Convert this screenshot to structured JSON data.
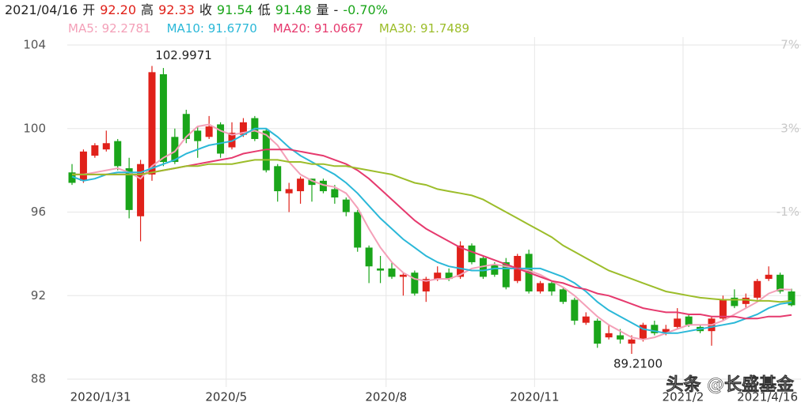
{
  "chart_data": {
    "type": "candlestick",
    "header": [
      {
        "text": "2021/04/16",
        "color": "#222222"
      },
      {
        "text": "开",
        "color": "#222222"
      },
      {
        "text": "92.20",
        "color": "#e0211a"
      },
      {
        "text": "高",
        "color": "#222222"
      },
      {
        "text": "92.33",
        "color": "#e0211a"
      },
      {
        "text": "收",
        "color": "#222222"
      },
      {
        "text": "91.54",
        "color": "#1aa51a"
      },
      {
        "text": "低",
        "color": "#222222"
      },
      {
        "text": "91.48",
        "color": "#1aa51a"
      },
      {
        "text": "量",
        "color": "#222222"
      },
      {
        "text": "-",
        "color": "#222222"
      },
      {
        "text": "-0.70%",
        "color": "#1aa51a"
      }
    ],
    "up_color": "#e0211a",
    "down_color": "#1aa51a",
    "open": [
      97.9,
      97.5,
      98.7,
      99.0,
      99.4,
      98.1,
      95.8,
      97.8,
      102.6,
      99.6,
      100.7,
      99.9,
      99.6,
      100.2,
      99.1,
      99.7,
      100.5,
      99.9,
      98.2,
      96.9,
      97.0,
      97.6,
      97.5,
      97.1,
      96.6,
      96.0,
      94.3,
      93.3,
      93.3,
      92.9,
      93.1,
      92.2,
      92.8,
      93.1,
      92.9,
      94.4,
      93.8,
      93.5,
      93.6,
      92.7,
      94.0,
      92.2,
      92.6,
      92.3,
      91.8,
      90.7,
      90.8,
      90.0,
      90.1,
      89.7,
      89.9,
      90.6,
      90.2,
      90.5,
      91.0,
      90.5,
      90.3,
      90.9,
      91.9,
      91.6,
      91.9,
      92.8,
      93.0,
      92.2
    ],
    "high": [
      98.3,
      99.0,
      99.3,
      99.9,
      99.5,
      98.6,
      98.5,
      102.9971,
      102.9,
      100.0,
      100.9,
      100.1,
      100.6,
      100.3,
      100.3,
      100.5,
      100.6,
      100.0,
      98.3,
      97.4,
      97.7,
      97.6,
      97.6,
      97.3,
      96.7,
      96.1,
      94.4,
      93.9,
      93.6,
      93.1,
      93.2,
      92.9,
      93.4,
      93.3,
      94.6,
      94.5,
      93.9,
      93.6,
      93.8,
      94.0,
      94.2,
      92.7,
      92.7,
      92.4,
      91.9,
      91.2,
      90.9,
      90.6,
      90.4,
      90.1,
      90.7,
      90.8,
      90.6,
      91.4,
      91.1,
      90.6,
      91.0,
      92.0,
      92.3,
      92.1,
      92.8,
      93.4,
      93.1,
      92.33
    ],
    "low": [
      97.3,
      97.4,
      98.6,
      98.9,
      98.0,
      95.7,
      94.6,
      97.5,
      98.2,
      98.3,
      99.3,
      98.6,
      99.5,
      98.6,
      99.0,
      99.6,
      99.4,
      97.9,
      96.5,
      96.0,
      96.4,
      96.5,
      96.9,
      96.4,
      95.8,
      94.1,
      92.6,
      92.6,
      92.8,
      92.0,
      92.0,
      91.7,
      92.7,
      92.7,
      92.8,
      93.5,
      92.8,
      92.9,
      92.3,
      92.6,
      92.1,
      92.1,
      92.0,
      91.6,
      90.6,
      90.6,
      89.5,
      89.9,
      89.7,
      89.21,
      89.8,
      90.1,
      90.1,
      90.4,
      90.5,
      90.2,
      89.6,
      90.8,
      91.4,
      91.4,
      91.8,
      92.7,
      92.1,
      91.48
    ],
    "close": [
      97.4,
      98.9,
      99.2,
      99.3,
      98.2,
      96.1,
      98.3,
      102.7,
      98.4,
      98.4,
      99.5,
      99.4,
      100.1,
      98.8,
      99.8,
      100.3,
      99.5,
      98.0,
      97.0,
      97.1,
      97.6,
      97.3,
      97.0,
      96.7,
      96.0,
      94.3,
      93.4,
      93.2,
      92.9,
      93.0,
      92.1,
      92.8,
      93.1,
      92.8,
      94.4,
      93.6,
      92.9,
      93.0,
      92.4,
      93.9,
      92.2,
      92.6,
      92.2,
      91.7,
      90.8,
      91.0,
      89.7,
      90.2,
      89.9,
      89.9,
      90.6,
      90.2,
      90.4,
      90.9,
      90.6,
      90.3,
      90.9,
      91.8,
      91.5,
      91.9,
      92.7,
      93.0,
      92.2,
      91.54
    ],
    "series": [
      {
        "name": "MA5: 92.2781",
        "color": "#f4a0b8",
        "values": [
          97.8,
          97.8,
          97.9,
          98.0,
          98.1,
          97.9,
          97.6,
          98.2,
          98.6,
          98.9,
          99.6,
          100.1,
          100.2,
          99.9,
          99.7,
          99.8,
          99.9,
          99.7,
          99.2,
          98.4,
          97.8,
          97.5,
          97.3,
          97.2,
          96.9,
          96.2,
          95.2,
          94.3,
          93.6,
          93.1,
          92.8,
          92.7,
          92.8,
          92.8,
          93.0,
          93.3,
          93.4,
          93.5,
          93.4,
          93.3,
          93.2,
          93.0,
          92.7,
          92.4,
          92.0,
          91.5,
          91.0,
          90.6,
          90.3,
          90.0,
          89.9,
          90.0,
          90.2,
          90.4,
          90.6,
          90.6,
          90.6,
          90.8,
          91.1,
          91.4,
          91.7,
          92.1,
          92.3,
          92.28
        ]
      },
      {
        "name": "MA10: 91.6770",
        "color": "#2bb8d8",
        "values": [
          97.7,
          97.5,
          97.6,
          97.8,
          97.9,
          97.9,
          97.9,
          98.1,
          98.3,
          98.5,
          98.8,
          99.0,
          99.2,
          99.3,
          99.4,
          99.7,
          100.0,
          100.0,
          99.6,
          99.1,
          98.7,
          98.4,
          98.1,
          97.8,
          97.4,
          96.9,
          96.3,
          95.7,
          95.2,
          94.7,
          94.3,
          93.9,
          93.6,
          93.4,
          93.3,
          93.2,
          93.2,
          93.3,
          93.3,
          93.3,
          93.3,
          93.3,
          93.1,
          92.9,
          92.6,
          92.2,
          91.7,
          91.3,
          91.0,
          90.7,
          90.4,
          90.3,
          90.2,
          90.2,
          90.3,
          90.4,
          90.5,
          90.6,
          90.7,
          90.9,
          91.1,
          91.4,
          91.6,
          91.68
        ]
      },
      {
        "name": "MA20: 91.0667",
        "color": "#e63a6e",
        "values": [
          97.8,
          97.8,
          97.8,
          97.8,
          97.8,
          97.8,
          97.8,
          97.9,
          98.0,
          98.1,
          98.2,
          98.3,
          98.4,
          98.5,
          98.6,
          98.8,
          98.9,
          99.0,
          99.0,
          99.0,
          98.9,
          98.8,
          98.7,
          98.5,
          98.3,
          98.0,
          97.6,
          97.1,
          96.6,
          96.1,
          95.6,
          95.2,
          94.9,
          94.6,
          94.3,
          94.1,
          93.9,
          93.7,
          93.5,
          93.3,
          93.1,
          92.9,
          92.7,
          92.6,
          92.4,
          92.3,
          92.1,
          92.0,
          91.8,
          91.6,
          91.4,
          91.3,
          91.2,
          91.2,
          91.1,
          91.1,
          91.0,
          91.0,
          91.0,
          90.9,
          90.9,
          91.0,
          91.0,
          91.07
        ]
      },
      {
        "name": "MA30: 91.7489",
        "color": "#9cbd2a",
        "values": [
          97.8,
          97.8,
          97.8,
          97.8,
          97.8,
          97.8,
          97.8,
          97.9,
          98.0,
          98.1,
          98.2,
          98.2,
          98.3,
          98.3,
          98.3,
          98.4,
          98.5,
          98.5,
          98.5,
          98.4,
          98.4,
          98.3,
          98.3,
          98.2,
          98.2,
          98.1,
          98.0,
          97.9,
          97.8,
          97.6,
          97.4,
          97.3,
          97.1,
          97.0,
          96.9,
          96.8,
          96.6,
          96.3,
          96.0,
          95.7,
          95.4,
          95.1,
          94.8,
          94.4,
          94.1,
          93.8,
          93.5,
          93.2,
          93.0,
          92.8,
          92.6,
          92.4,
          92.2,
          92.1,
          92.0,
          91.9,
          91.85,
          91.8,
          91.8,
          91.8,
          91.75,
          91.75,
          91.7,
          91.75
        ]
      }
    ],
    "annotations": [
      {
        "index": 7,
        "value": 102.9971,
        "label": "102.9971"
      },
      {
        "index": 49,
        "value": 89.21,
        "label": "89.2100"
      }
    ],
    "xticks": [
      {
        "value": 2.5,
        "label": "2020/1/31"
      },
      {
        "value": 13.5,
        "label": "2020/5"
      },
      {
        "value": 27.5,
        "label": "2020/8"
      },
      {
        "value": 40.5,
        "label": "2020/11"
      },
      {
        "value": 53.5,
        "label": "2021/2"
      },
      {
        "value": 61.5,
        "label": "2021/4/16"
      }
    ],
    "ylim": [
      88,
      104
    ],
    "yticks": [
      88,
      92,
      96,
      100,
      104
    ],
    "y2lim": [
      -9,
      7
    ],
    "y2ticks": [
      {
        "value": 7,
        "label": "7%"
      },
      {
        "value": 3,
        "label": "3%"
      },
      {
        "value": -1,
        "label": "-1%"
      }
    ],
    "grid": true,
    "watermark": "头条 @长盛基金"
  }
}
